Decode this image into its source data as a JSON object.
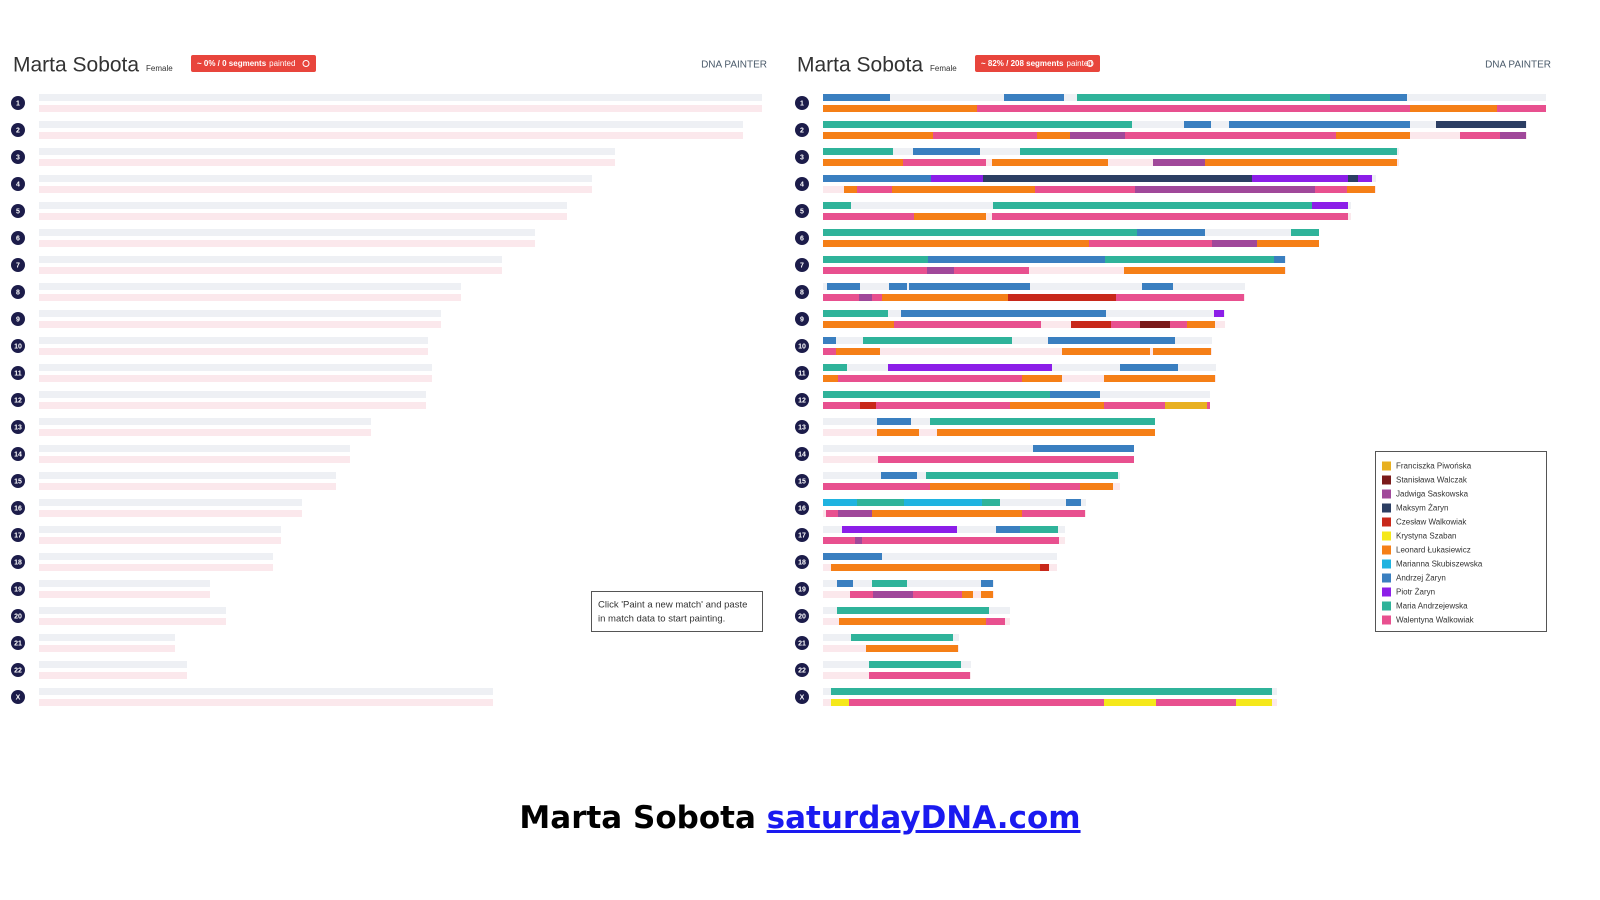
{
  "chromosomes": [
    "1",
    "2",
    "3",
    "4",
    "5",
    "6",
    "7",
    "8",
    "9",
    "10",
    "11",
    "12",
    "13",
    "14",
    "15",
    "16",
    "17",
    "18",
    "19",
    "20",
    "21",
    "22",
    "X"
  ],
  "left": {
    "name": "Marta Sobota",
    "sex": "Female",
    "badge_strong": "~ 0% / 0 segments",
    "badge_rest": "painted",
    "brand": "DNA PAINTER",
    "note": [
      "Click 'Paint a new match' and paste",
      "in match data to start painting."
    ]
  },
  "right": {
    "name": "Marta Sobota",
    "sex": "Female",
    "badge_strong": "~ 82% / 208 segments",
    "badge_rest": "painted",
    "brand": "DNA PAINTER",
    "legend": [
      {
        "name": "Franciszka Piwońska",
        "color": "#e8b020"
      },
      {
        "name": "Stanisława Walczak",
        "color": "#7a1a1a"
      },
      {
        "name": "Jadwiga Saskowska",
        "color": "#a0489a"
      },
      {
        "name": "Maksym Żaryn",
        "color": "#2c3e63"
      },
      {
        "name": "Czesław Walkowiak",
        "color": "#c8281a"
      },
      {
        "name": "Krystyna Szaban",
        "color": "#f5e81a"
      },
      {
        "name": "Leonard Łukasiewicz",
        "color": "#f57f17"
      },
      {
        "name": "Marianna Skubiszewska",
        "color": "#1fb3e0"
      },
      {
        "name": "Andrzej Żaryn",
        "color": "#3a7fc0"
      },
      {
        "name": "Piotr Żaryn",
        "color": "#8c1ee8"
      },
      {
        "name": "Maria Andrzejewska",
        "color": "#2fb39a"
      },
      {
        "name": "Walentyna Walkowiak",
        "color": "#e8508f"
      }
    ]
  },
  "footer": {
    "name": "Marta Sobota",
    "link": "saturdayDNA.com"
  }
}
